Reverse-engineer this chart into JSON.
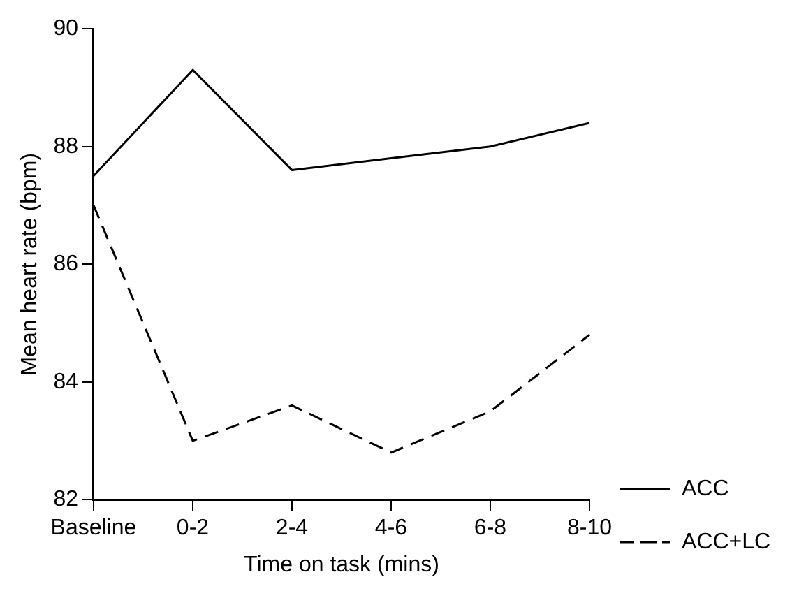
{
  "chart_data": {
    "type": "line",
    "xlabel": "Time on task (mins)",
    "ylabel": "Mean heart rate (bpm)",
    "categories": [
      "Baseline",
      "0-2",
      "2-4",
      "4-6",
      "6-8",
      "8-10"
    ],
    "series": [
      {
        "name": "ACC",
        "color": "#000000",
        "line_style": "solid",
        "values": [
          87.5,
          89.3,
          87.6,
          87.8,
          88.0,
          88.4
        ]
      },
      {
        "name": "ACC+LC",
        "color": "#000000",
        "line_style": "dashed",
        "values": [
          87.0,
          83.0,
          83.6,
          82.8,
          83.5,
          84.8
        ]
      }
    ],
    "ylim": [
      82,
      90
    ],
    "yticks": [
      82,
      84,
      86,
      88,
      90
    ],
    "grid": false,
    "legend": "bottom right",
    "marker": "none"
  }
}
